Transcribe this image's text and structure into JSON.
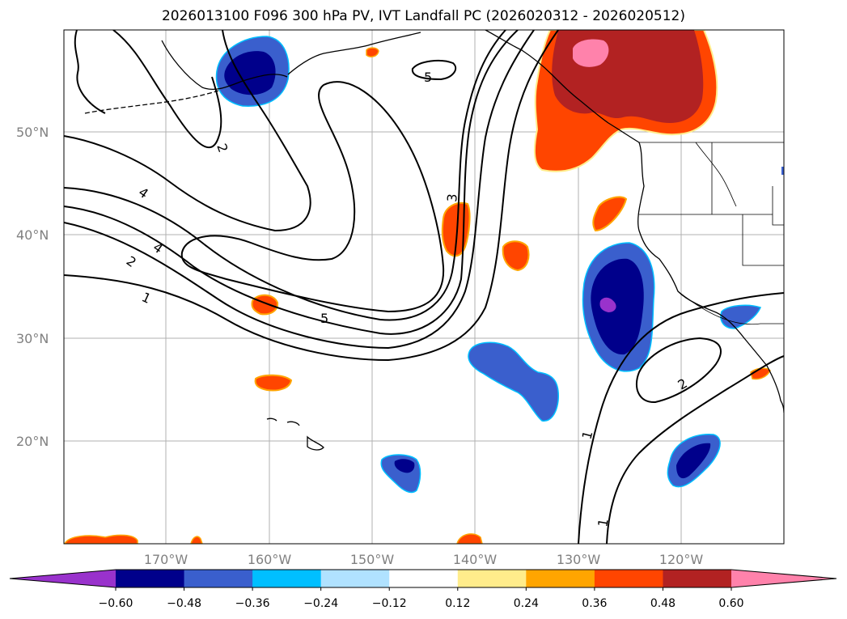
{
  "title": "2026013100 F096 300 hPa PV, IVT Landfall PC (2026020312 - 2026020512)",
  "lat_ticks": [
    "50°N",
    "40°N",
    "30°N",
    "20°N"
  ],
  "lon_ticks": [
    "170°W",
    "160°W",
    "150°W",
    "140°W",
    "130°W",
    "120°W"
  ],
  "colorbar": {
    "tick_labels": [
      "−0.60",
      "−0.48",
      "−0.36",
      "−0.24",
      "−0.12",
      "0.12",
      "0.24",
      "0.36",
      "0.48",
      "0.60"
    ],
    "colors": [
      "#9932cc",
      "#00008b",
      "#3a5fcd",
      "#00bfff",
      "#b0e2ff",
      "#ffffff",
      "#ffec8b",
      "#ffa500",
      "#ff4500",
      "#b22222",
      "#ff82ab"
    ]
  },
  "contour_labels": [
    "2",
    "4",
    "4",
    "2",
    "1",
    "5",
    "5",
    "3",
    "2",
    "1",
    "1"
  ]
}
